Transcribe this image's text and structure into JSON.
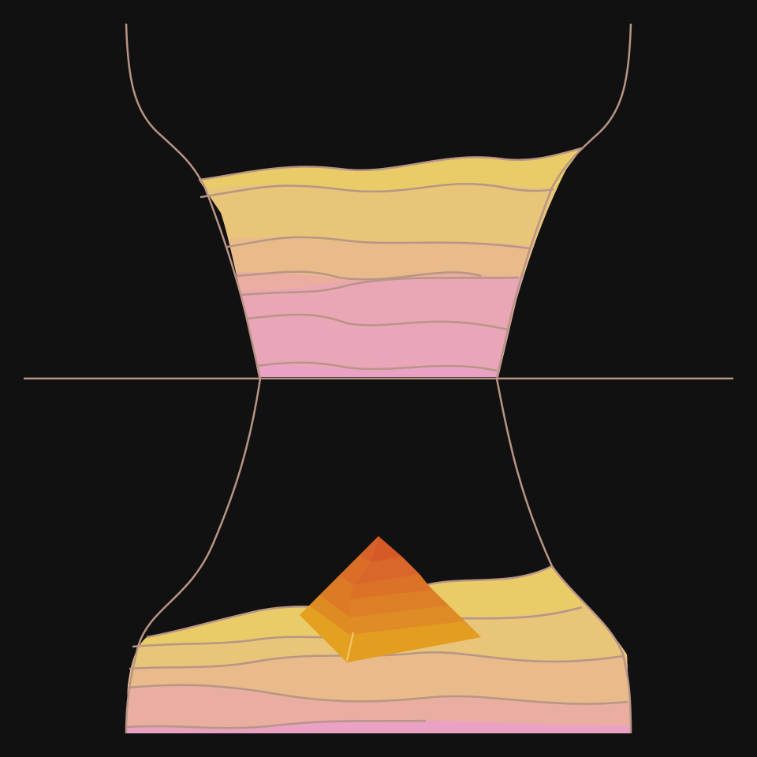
{
  "colors": {
    "background": "#111111",
    "outline": "#b89585",
    "layer_yellow": "#e9cc67",
    "layer_tan": "#e8c579",
    "layer_peach": "#e9bb8b",
    "layer_salmon": "#e9aea0",
    "layer_pink": "#e9a6b4",
    "layer_magenta": "#e9a2c4",
    "pyramid_light": "#e3a021",
    "pyramid_mid": "#e08a25",
    "pyramid_dark": "#d9622a"
  },
  "icons": {
    "pyramid": "pyramid-icon",
    "hourglass": "hourglass-shape"
  }
}
